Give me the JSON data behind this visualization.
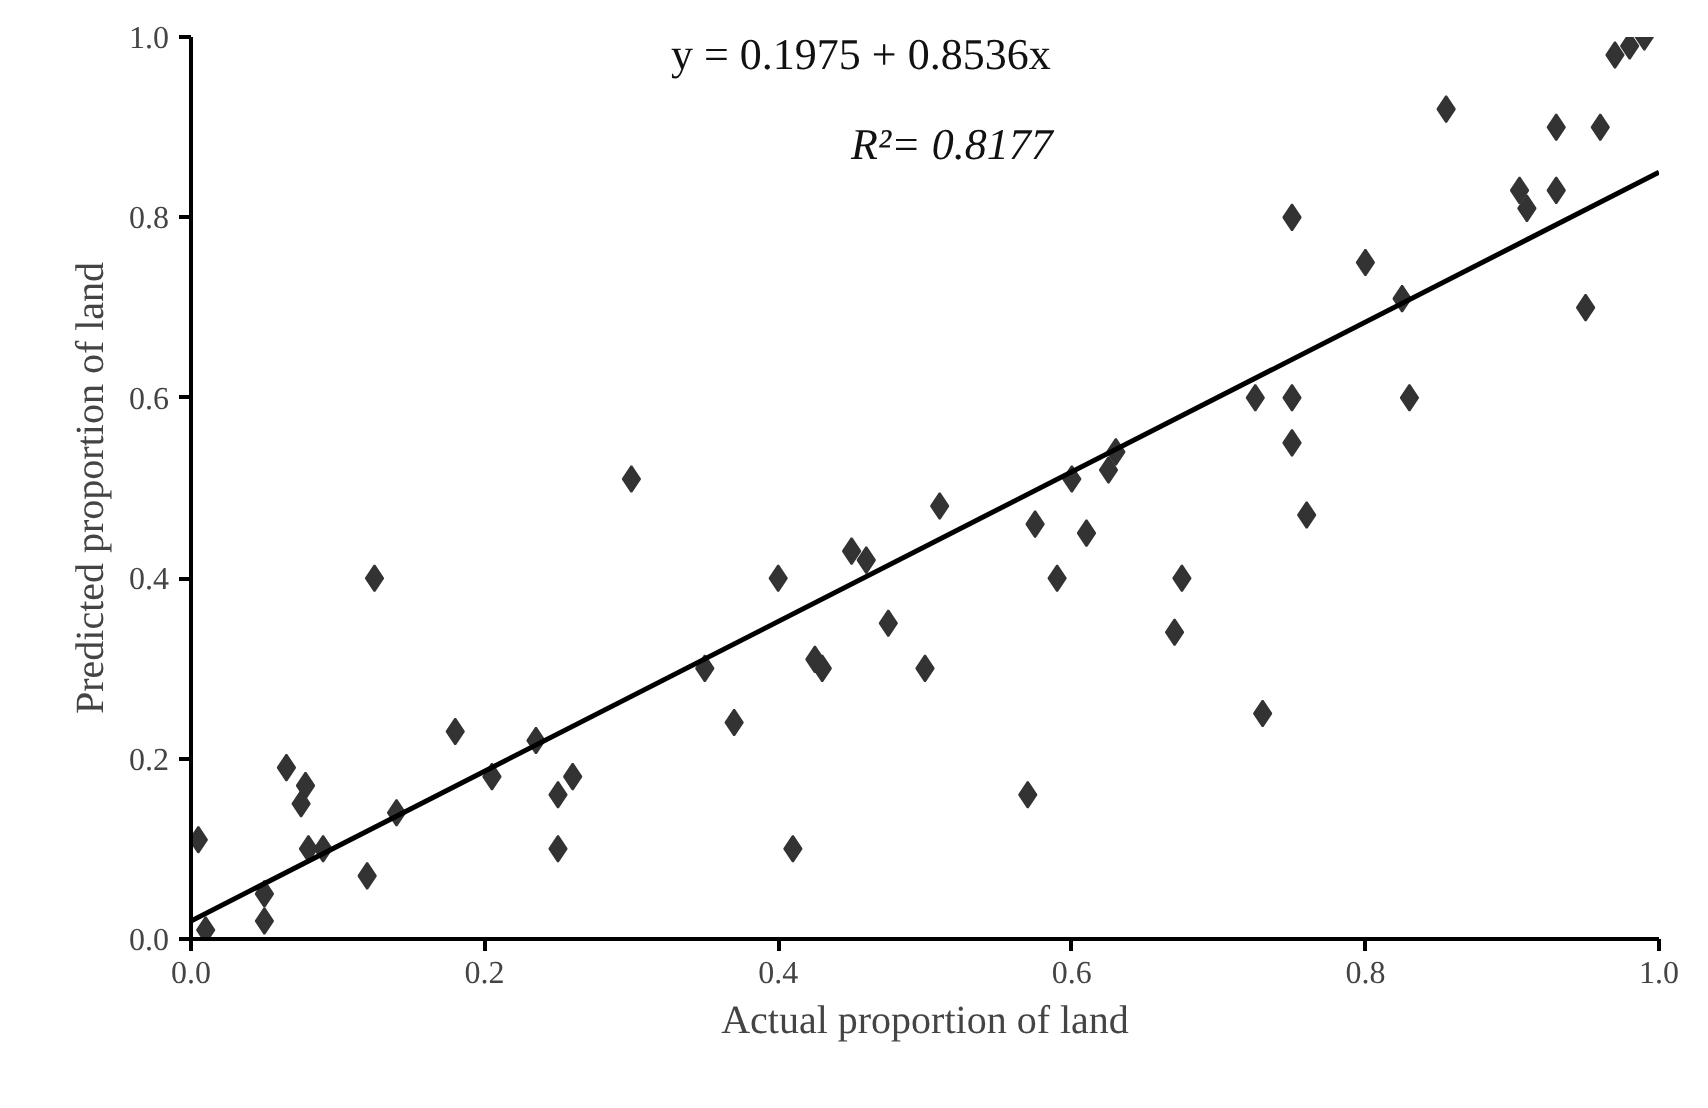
{
  "chart_data": {
    "type": "scatter",
    "xlabel": "Actual proportion of land",
    "ylabel": "Predicted proportion of land",
    "annotations": [
      "y = 0.1975 + 0.8536x",
      "R²= 0.8177"
    ],
    "xlim": [
      0,
      1
    ],
    "ylim": [
      0,
      1
    ],
    "xticks": [
      {
        "value": 0,
        "label": "0.0"
      },
      {
        "value": 0.2,
        "label": "0.2"
      },
      {
        "value": 0.4,
        "label": "0.4"
      },
      {
        "value": 0.6,
        "label": "0.6"
      },
      {
        "value": 0.8,
        "label": "0.8"
      },
      {
        "value": 1,
        "label": "1.0"
      }
    ],
    "yticks": [
      {
        "value": 0,
        "label": "0.0"
      },
      {
        "value": 0.2,
        "label": "0.2"
      },
      {
        "value": 0.4,
        "label": "0.4"
      },
      {
        "value": 0.6,
        "label": "0.6"
      },
      {
        "value": 0.8,
        "label": "0.8"
      },
      {
        "value": 1,
        "label": "1.0"
      }
    ],
    "grid": false,
    "series": [
      {
        "marker": "diamond",
        "color": "#333333",
        "x": [
          0.005,
          0.01,
          0.05,
          0.05,
          0.065,
          0.075,
          0.078,
          0.08,
          0.09,
          0.12,
          0.125,
          0.14,
          0.18,
          0.205,
          0.235,
          0.25,
          0.25,
          0.26,
          0.3,
          0.35,
          0.37,
          0.4,
          0.41,
          0.425,
          0.43,
          0.45,
          0.46,
          0.475,
          0.5,
          0.51,
          0.57,
          0.575,
          0.59,
          0.6,
          0.61,
          0.625,
          0.63,
          0.67,
          0.675,
          0.725,
          0.73,
          0.75,
          0.75,
          0.75,
          0.76,
          0.8,
          0.825,
          0.83,
          0.855,
          0.905,
          0.91,
          0.93,
          0.93,
          0.95,
          0.96,
          0.97,
          0.98,
          0.99
        ],
        "values": [
          0.11,
          0.01,
          0.05,
          0.02,
          0.19,
          0.15,
          0.17,
          0.1,
          0.1,
          0.07,
          0.4,
          0.14,
          0.23,
          0.18,
          0.22,
          0.1,
          0.16,
          0.18,
          0.51,
          0.3,
          0.24,
          0.4,
          0.1,
          0.31,
          0.3,
          0.43,
          0.42,
          0.35,
          0.3,
          0.48,
          0.16,
          0.46,
          0.4,
          0.51,
          0.45,
          0.52,
          0.54,
          0.34,
          0.4,
          0.6,
          0.25,
          0.6,
          0.55,
          0.8,
          0.47,
          0.75,
          0.71,
          0.6,
          0.92,
          0.83,
          0.81,
          0.83,
          0.9,
          0.7,
          0.9,
          0.98,
          0.99,
          1.0
        ]
      },
      {
        "type": "line",
        "color": "#000000",
        "x": [
          0,
          1
        ],
        "values": [
          0.02,
          0.85
        ],
        "line_style": "solid",
        "marker": "none"
      }
    ]
  }
}
